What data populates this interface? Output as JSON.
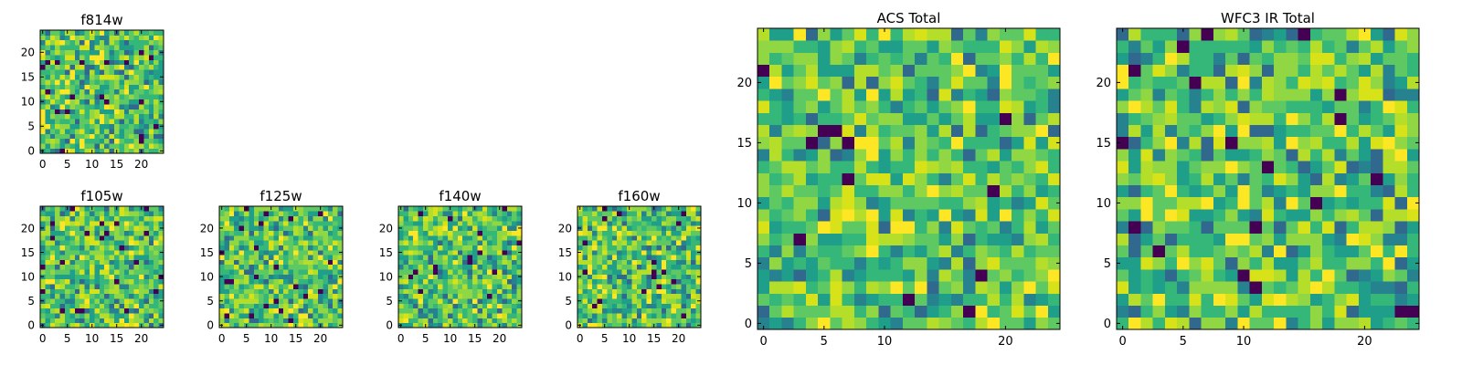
{
  "chart_data": [
    {
      "type": "heatmap",
      "title": "f814w",
      "x_ticks": [
        0,
        5,
        10,
        15,
        20
      ],
      "y_ticks": [
        0,
        5,
        10,
        15,
        20
      ],
      "xlim": [
        0,
        25
      ],
      "ylim": [
        0,
        25
      ],
      "grid_size": 25,
      "colormap": "viridis",
      "seed": 814,
      "grid": false
    },
    {
      "type": "heatmap",
      "title": "f105w",
      "x_ticks": [
        0,
        5,
        10,
        15,
        20
      ],
      "y_ticks": [
        0,
        5,
        10,
        15,
        20
      ],
      "xlim": [
        0,
        25
      ],
      "ylim": [
        0,
        25
      ],
      "grid_size": 25,
      "colormap": "viridis",
      "seed": 105,
      "grid": false
    },
    {
      "type": "heatmap",
      "title": "f125w",
      "x_ticks": [
        0,
        5,
        10,
        15,
        20
      ],
      "y_ticks": [
        0,
        5,
        10,
        15,
        20
      ],
      "xlim": [
        0,
        25
      ],
      "ylim": [
        0,
        25
      ],
      "grid_size": 25,
      "colormap": "viridis",
      "seed": 125,
      "grid": false
    },
    {
      "type": "heatmap",
      "title": "f140w",
      "x_ticks": [
        0,
        5,
        10,
        15,
        20
      ],
      "y_ticks": [
        0,
        5,
        10,
        15,
        20
      ],
      "xlim": [
        0,
        25
      ],
      "ylim": [
        0,
        25
      ],
      "grid_size": 25,
      "colormap": "viridis",
      "seed": 140,
      "grid": false
    },
    {
      "type": "heatmap",
      "title": "f160w",
      "x_ticks": [
        0,
        5,
        10,
        15,
        20
      ],
      "y_ticks": [
        0,
        5,
        10,
        15,
        20
      ],
      "xlim": [
        0,
        25
      ],
      "ylim": [
        0,
        25
      ],
      "grid_size": 25,
      "colormap": "viridis",
      "seed": 160,
      "grid": false
    },
    {
      "type": "heatmap",
      "title": "ACS Total",
      "x_ticks": [
        0,
        5,
        10,
        20
      ],
      "y_ticks": [
        0,
        5,
        10,
        15,
        20
      ],
      "xlim": [
        0,
        25
      ],
      "ylim": [
        0,
        25
      ],
      "grid_size": 25,
      "colormap": "viridis",
      "seed": 1001,
      "grid": false
    },
    {
      "type": "heatmap",
      "title": "WFC3 IR Total",
      "x_ticks": [
        0,
        5,
        10,
        20
      ],
      "y_ticks": [
        0,
        5,
        10,
        15,
        20
      ],
      "xlim": [
        0,
        25
      ],
      "ylim": [
        0,
        25
      ],
      "grid_size": 25,
      "colormap": "viridis",
      "seed": 2002,
      "grid": false
    }
  ]
}
